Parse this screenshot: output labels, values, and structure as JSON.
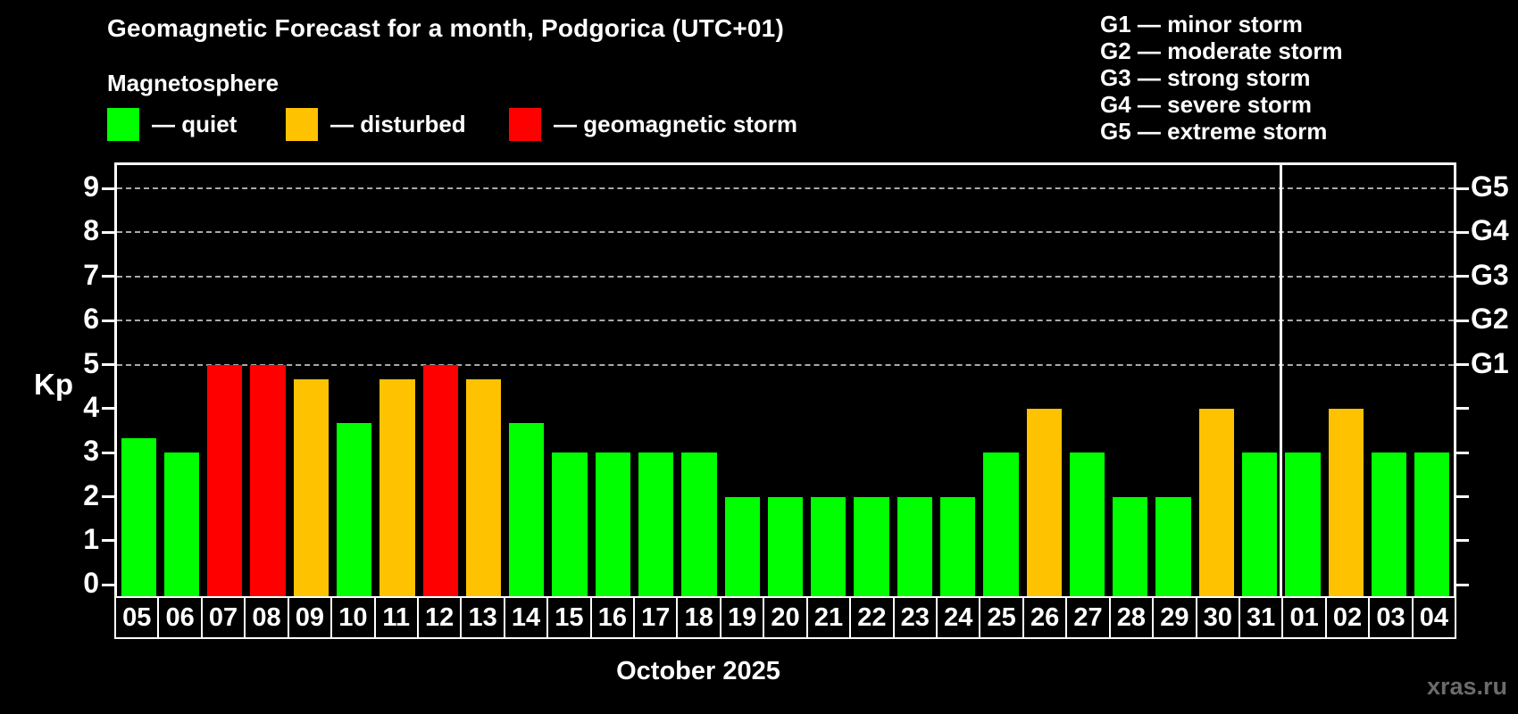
{
  "header": {
    "title": "Geomagnetic Forecast for a month, Podgorica (UTC+01)",
    "subtitle": "Magnetosphere"
  },
  "legend": {
    "items": [
      {
        "label": "— quiet",
        "status": "quiet"
      },
      {
        "label": "— disturbed",
        "status": "disturbed"
      },
      {
        "label": "— geomagnetic storm",
        "status": "storm"
      }
    ]
  },
  "storm_scale_legend": [
    "G1 — minor storm",
    "G2 — moderate storm",
    "G3 — strong storm",
    "G4 — severe storm",
    "G5 — extreme storm"
  ],
  "colors": {
    "quiet": "#00ff00",
    "disturbed": "#ffc200",
    "storm": "#ff0000",
    "background": "#000000",
    "axis": "#ffffff",
    "grid": "#aaaaaa",
    "watermark": "#6b6b6b"
  },
  "chart_data": {
    "type": "bar",
    "title": "Geomagnetic Forecast for a month, Podgorica (UTC+01)",
    "ylabel": "Kp",
    "xlabel": "October 2025",
    "categories": [
      "05",
      "06",
      "07",
      "08",
      "09",
      "10",
      "11",
      "12",
      "13",
      "14",
      "15",
      "16",
      "17",
      "18",
      "19",
      "20",
      "21",
      "22",
      "23",
      "24",
      "25",
      "26",
      "27",
      "28",
      "29",
      "30",
      "31",
      "01",
      "02",
      "03",
      "04"
    ],
    "values": [
      3.33,
      3,
      5,
      5,
      4.67,
      3.67,
      4.67,
      5,
      4.67,
      3.67,
      3,
      3,
      3,
      3,
      2,
      2,
      2,
      2,
      2,
      2,
      3,
      4,
      3,
      2,
      2,
      4,
      3,
      3,
      4,
      3,
      3
    ],
    "statuses": [
      "quiet",
      "quiet",
      "storm",
      "storm",
      "disturbed",
      "quiet",
      "disturbed",
      "storm",
      "disturbed",
      "quiet",
      "quiet",
      "quiet",
      "quiet",
      "quiet",
      "quiet",
      "quiet",
      "quiet",
      "quiet",
      "quiet",
      "quiet",
      "quiet",
      "disturbed",
      "quiet",
      "quiet",
      "quiet",
      "disturbed",
      "quiet",
      "quiet",
      "disturbed",
      "quiet",
      "quiet"
    ],
    "yticks": [
      0,
      1,
      2,
      3,
      4,
      5,
      6,
      7,
      8,
      9
    ],
    "ylim": [
      -0.32,
      9.53
    ],
    "grid_levels": [
      5,
      6,
      7,
      8,
      9
    ],
    "right_axis_labels": [
      {
        "label": "G1",
        "kp": 5
      },
      {
        "label": "G2",
        "kp": 6
      },
      {
        "label": "G3",
        "kp": 7
      },
      {
        "label": "G4",
        "kp": 8
      },
      {
        "label": "G5",
        "kp": 9
      }
    ],
    "month_separator_after": "31",
    "legend_position": "top-left",
    "grid": true
  },
  "footer": {
    "watermark": "xras.ru"
  }
}
